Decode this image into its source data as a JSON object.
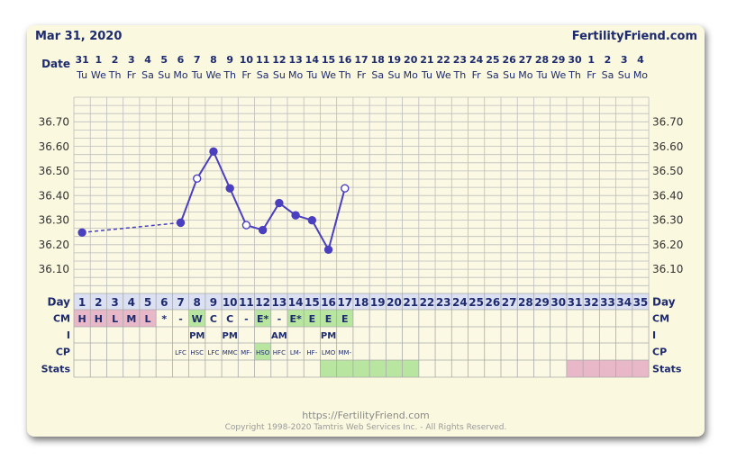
{
  "header": {
    "date": "Mar 31, 2020",
    "brand": "FertilityFriend.com"
  },
  "row_labels": {
    "date": "Date",
    "day": "Day",
    "cm": "CM",
    "i": "I",
    "cp": "CP",
    "stats": "Stats"
  },
  "chart_data": {
    "type": "line",
    "x_dates": [
      "31",
      "1",
      "2",
      "3",
      "4",
      "5",
      "6",
      "7",
      "8",
      "9",
      "10",
      "11",
      "12",
      "13",
      "14",
      "15",
      "16",
      "17",
      "18",
      "19",
      "20",
      "21",
      "22",
      "23",
      "24",
      "25",
      "26",
      "27",
      "28",
      "29",
      "30",
      "1",
      "2",
      "3",
      "4"
    ],
    "x_weekdays": [
      "Tu",
      "We",
      "Th",
      "Fr",
      "Sa",
      "Su",
      "Mo",
      "Tu",
      "We",
      "Th",
      "Fr",
      "Sa",
      "Su",
      "Mo",
      "Tu",
      "We",
      "Th",
      "Fr",
      "Sa",
      "Su",
      "Mo",
      "Tu",
      "We",
      "Th",
      "Fr",
      "Sa",
      "Su",
      "Mo",
      "Tu",
      "We",
      "Th",
      "Fr",
      "Sa",
      "Su",
      "Mo"
    ],
    "cycle_days": [
      1,
      2,
      3,
      4,
      5,
      6,
      7,
      8,
      9,
      10,
      11,
      12,
      13,
      14,
      15,
      16,
      17,
      18,
      19,
      20,
      21,
      22,
      23,
      24,
      25,
      26,
      27,
      28,
      29,
      30,
      31,
      32,
      33,
      34,
      35
    ],
    "yticks": [
      "36.70",
      "36.60",
      "36.50",
      "36.40",
      "36.30",
      "36.20",
      "36.10"
    ],
    "ylim": [
      36.0,
      36.8
    ],
    "temperatures": [
      {
        "day": 1,
        "value": 36.25,
        "open": false
      },
      {
        "day": 7,
        "value": 36.29,
        "open": false
      },
      {
        "day": 8,
        "value": 36.47,
        "open": true
      },
      {
        "day": 9,
        "value": 36.58,
        "open": false
      },
      {
        "day": 10,
        "value": 36.43,
        "open": false
      },
      {
        "day": 11,
        "value": 36.28,
        "open": true
      },
      {
        "day": 12,
        "value": 36.26,
        "open": false
      },
      {
        "day": 13,
        "value": 36.37,
        "open": false
      },
      {
        "day": 14,
        "value": 36.32,
        "open": false
      },
      {
        "day": 15,
        "value": 36.3,
        "open": false
      },
      {
        "day": 16,
        "value": 36.18,
        "open": false
      },
      {
        "day": 17,
        "value": 36.43,
        "open": true
      }
    ],
    "dashed_segments": [
      [
        1,
        7
      ]
    ],
    "cm": [
      {
        "day": 1,
        "text": "H",
        "bg": "#e8b8c8"
      },
      {
        "day": 2,
        "text": "H",
        "bg": "#e8b8c8"
      },
      {
        "day": 3,
        "text": "L",
        "bg": "#e8b8c8"
      },
      {
        "day": 4,
        "text": "M",
        "bg": "#e8b8c8"
      },
      {
        "day": 5,
        "text": "L",
        "bg": "#e8b8c8"
      },
      {
        "day": 6,
        "text": "*",
        "bg": ""
      },
      {
        "day": 7,
        "text": "-",
        "bg": ""
      },
      {
        "day": 8,
        "text": "W",
        "bg": "#b8e6a0"
      },
      {
        "day": 9,
        "text": "C",
        "bg": ""
      },
      {
        "day": 10,
        "text": "C",
        "bg": ""
      },
      {
        "day": 11,
        "text": "-",
        "bg": ""
      },
      {
        "day": 12,
        "text": "E*",
        "bg": "#b8e6a0"
      },
      {
        "day": 13,
        "text": "-",
        "bg": ""
      },
      {
        "day": 14,
        "text": "E*",
        "bg": "#b8e6a0"
      },
      {
        "day": 15,
        "text": "E",
        "bg": "#b8e6a0"
      },
      {
        "day": 16,
        "text": "E",
        "bg": "#b8e6a0"
      },
      {
        "day": 17,
        "text": "E",
        "bg": "#b8e6a0"
      }
    ],
    "intercourse": [
      {
        "day": 8,
        "text": "PM"
      },
      {
        "day": 10,
        "text": "PM"
      },
      {
        "day": 13,
        "text": "AM"
      },
      {
        "day": 16,
        "text": "PM"
      }
    ],
    "cp": [
      {
        "day": 7,
        "text": "LFC",
        "bg": ""
      },
      {
        "day": 8,
        "text": "HSC",
        "bg": ""
      },
      {
        "day": 9,
        "text": "LFC",
        "bg": ""
      },
      {
        "day": 10,
        "text": "MMC",
        "bg": ""
      },
      {
        "day": 11,
        "text": "MF-",
        "bg": ""
      },
      {
        "day": 12,
        "text": "HSO",
        "bg": "#b8e6a0"
      },
      {
        "day": 13,
        "text": "HFC",
        "bg": ""
      },
      {
        "day": 14,
        "text": "LM-",
        "bg": ""
      },
      {
        "day": 15,
        "text": "HF-",
        "bg": ""
      },
      {
        "day": 16,
        "text": "LMO",
        "bg": ""
      },
      {
        "day": 17,
        "text": "MM-",
        "bg": ""
      }
    ],
    "stats": [
      {
        "from": 16,
        "to": 21,
        "color": "#b8e6a0"
      },
      {
        "from": 31,
        "to": 35,
        "color": "#e8b8c8"
      }
    ]
  },
  "colors": {
    "line": "#4a3fbf",
    "grid": "#bdbdbd",
    "text": "#1d2a6e"
  },
  "footer": {
    "url": "https://FertilityFriend.com",
    "copyright": "Copyright 1998-2020 Tamtris Web Services Inc. - All Rights Reserved."
  }
}
